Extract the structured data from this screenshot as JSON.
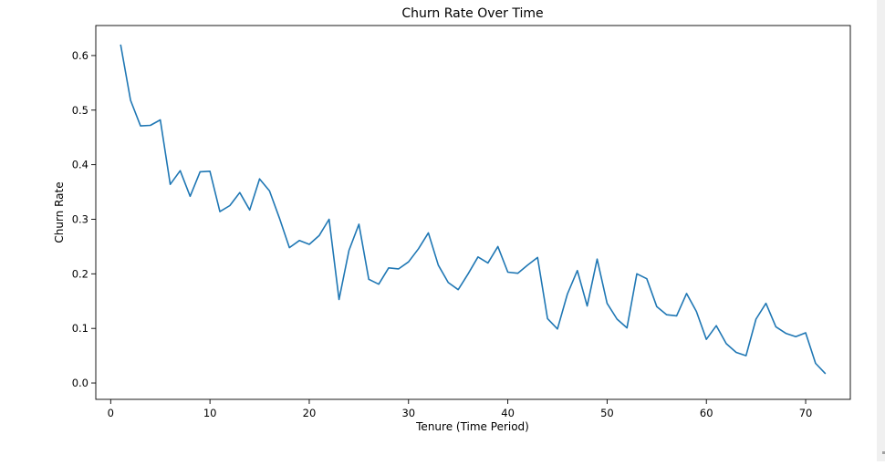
{
  "chart_data": {
    "type": "line",
    "title": "Churn Rate Over Time",
    "xlabel": "Tenure (Time Period)",
    "ylabel": "Churn Rate",
    "xlim": [
      -1.5,
      74.5
    ],
    "ylim": [
      -0.03,
      0.655
    ],
    "x_ticks": [
      0,
      10,
      20,
      30,
      40,
      50,
      60,
      70
    ],
    "y_ticks": [
      0.0,
      0.1,
      0.2,
      0.3,
      0.4,
      0.5,
      0.6
    ],
    "grid": false,
    "legend": false,
    "series": [
      {
        "color": "#1f77b4",
        "x": [
          1,
          2,
          3,
          4,
          5,
          6,
          7,
          8,
          9,
          10,
          11,
          12,
          13,
          14,
          15,
          16,
          17,
          18,
          19,
          20,
          21,
          22,
          23,
          24,
          25,
          26,
          27,
          28,
          29,
          30,
          31,
          32,
          33,
          34,
          35,
          36,
          37,
          38,
          39,
          40,
          41,
          42,
          43,
          44,
          45,
          46,
          47,
          48,
          49,
          50,
          51,
          52,
          53,
          54,
          55,
          56,
          57,
          58,
          59,
          60,
          61,
          62,
          63,
          64,
          65,
          66,
          67,
          68,
          69,
          70,
          71,
          72
        ],
        "values": [
          0.62,
          0.518,
          0.471,
          0.472,
          0.482,
          0.364,
          0.389,
          0.342,
          0.387,
          0.388,
          0.314,
          0.325,
          0.349,
          0.317,
          0.374,
          0.352,
          0.302,
          0.248,
          0.261,
          0.254,
          0.27,
          0.3,
          0.153,
          0.243,
          0.291,
          0.19,
          0.181,
          0.211,
          0.209,
          0.222,
          0.246,
          0.275,
          0.216,
          0.184,
          0.171,
          0.2,
          0.231,
          0.22,
          0.25,
          0.203,
          0.201,
          0.216,
          0.23,
          0.118,
          0.099,
          0.163,
          0.206,
          0.141,
          0.227,
          0.146,
          0.117,
          0.101,
          0.2,
          0.191,
          0.14,
          0.125,
          0.123,
          0.164,
          0.131,
          0.08,
          0.105,
          0.072,
          0.056,
          0.05,
          0.117,
          0.146,
          0.103,
          0.091,
          0.085,
          0.092,
          0.036,
          0.017
        ]
      }
    ]
  }
}
